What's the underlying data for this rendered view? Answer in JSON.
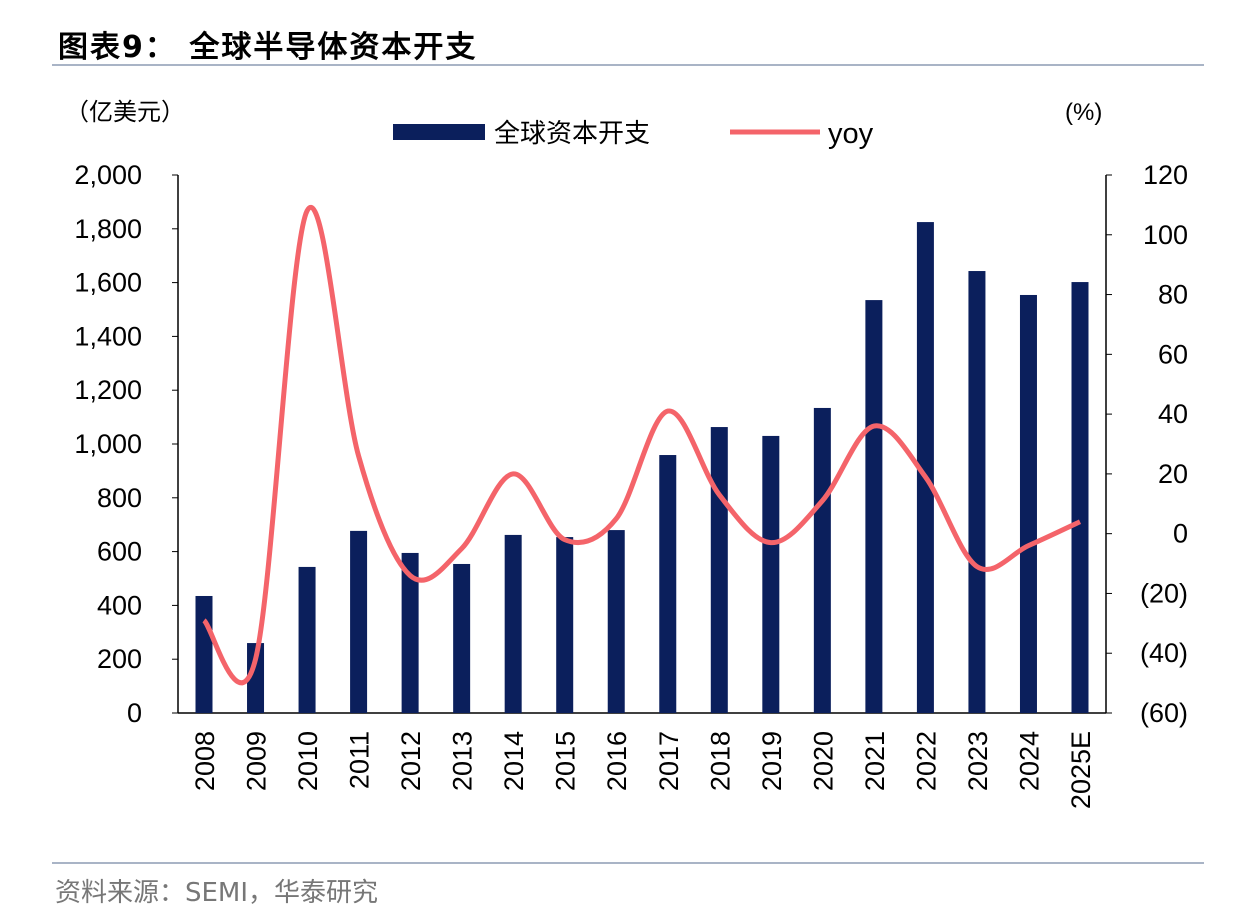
{
  "title": "图表9：  全球半导体资本开支",
  "source": "资料来源：SEMI，华泰研究",
  "chart_data": {
    "type": "bar+line",
    "categories": [
      "2008",
      "2009",
      "2010",
      "2011",
      "2012",
      "2013",
      "2014",
      "2015",
      "2016",
      "2017",
      "2018",
      "2019",
      "2020",
      "2021",
      "2022",
      "2023",
      "2024",
      "2025E"
    ],
    "series": [
      {
        "name": "全球资本开支",
        "type": "bar",
        "axis": "left",
        "color": "#0b1f5c",
        "values": [
          435,
          260,
          543,
          677,
          595,
          554,
          662,
          654,
          680,
          959,
          1063,
          1030,
          1134,
          1535,
          1825,
          1643,
          1554,
          1602
        ]
      },
      {
        "name": "yoy",
        "type": "line",
        "axis": "right",
        "color": "#f4646a",
        "values": [
          -29,
          -42,
          108,
          26,
          -14,
          -5,
          20,
          -2,
          5,
          41,
          13,
          -3,
          11,
          36,
          19,
          -11,
          -4,
          4
        ]
      }
    ],
    "left_unit": "（亿美元）",
    "right_unit": "(%)",
    "ylim_left": [
      0,
      2000
    ],
    "ylim_right": [
      -60,
      120
    ],
    "left_ticks": [
      "0",
      "200",
      "400",
      "600",
      "800",
      "1,000",
      "1,200",
      "1,400",
      "1,600",
      "1,800",
      "2,000"
    ],
    "right_ticks": [
      "(60)",
      "(40)",
      "(20)",
      "0",
      "20",
      "40",
      "60",
      "80",
      "100",
      "120"
    ],
    "legend": "top-center",
    "grid": false
  }
}
